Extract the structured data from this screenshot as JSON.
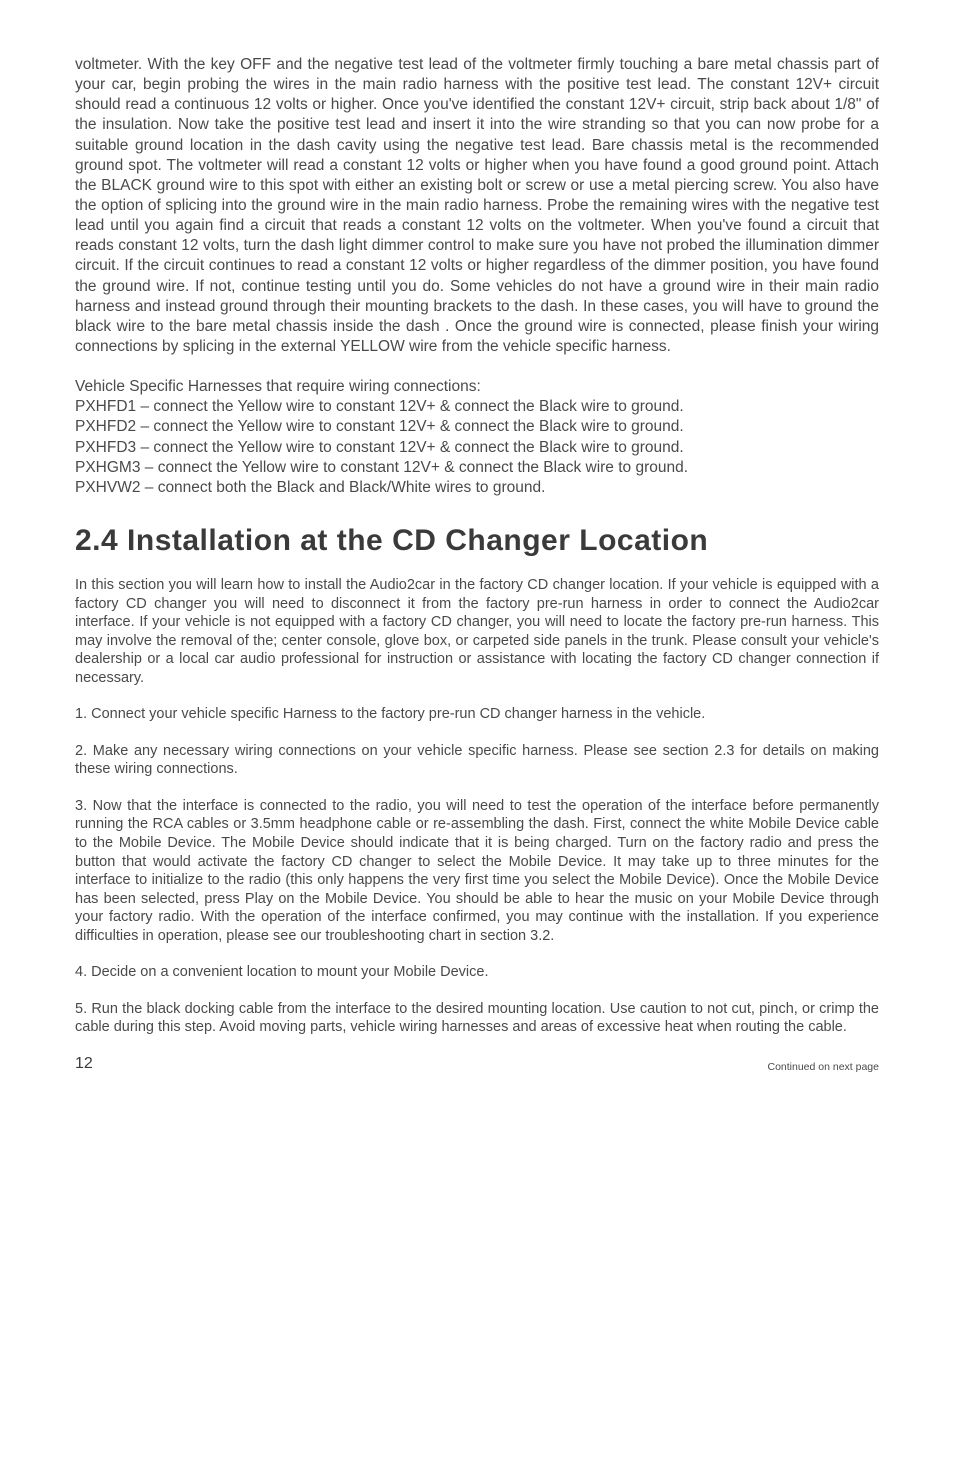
{
  "para1": "voltmeter.  With the key OFF and the negative test lead of the voltmeter firmly touching a bare metal chassis part of your car, begin probing the wires in the main radio harness with the positive test lead.  The constant 12V+ circuit should read a continuous 12 volts or higher.  Once you've identified the constant 12V+ circuit, strip back about 1/8\" of the insulation.  Now take the positive test lead and insert it into the wire stranding so that you can now probe for a suitable ground location in the dash cavity using the negative test lead.  Bare chassis metal is the recommended ground spot.  The voltmeter will read a constant 12 volts or higher when you have found a good ground point.  Attach the BLACK ground wire to this spot with either an existing bolt or screw or use a metal piercing screw.  You also have the option of splicing into the ground wire in the main radio harness.  Probe the remaining wires with the negative test lead until you again find a circuit that reads a constant 12 volts on the voltmeter.  When you've found a circuit that reads constant 12 volts, turn the dash light dimmer control to make sure you have not probed the illumination dimmer circuit.  If the circuit continues to read a constant 12 volts or higher regardless of the dimmer position, you have found the ground wire.  If not, continue testing until you do.  Some vehicles do not have a ground wire in their main radio harness and instead ground through their mounting brackets to the dash.  In these cases, you will have to ground the black wire to the bare metal chassis inside the dash . Once the ground wire is connected, please finish your wiring connections by splicing in the external YELLOW wire from the vehicle specific harness.",
  "harness": {
    "intro": "Vehicle Specific Harnesses that require wiring connections:",
    "lines": [
      "PXHFD1 – connect the Yellow wire to constant 12V+ & connect the Black wire to ground.",
      "PXHFD2 – connect the Yellow wire to constant 12V+ & connect the Black wire to ground.",
      "PXHFD3 – connect the Yellow wire to constant 12V+ & connect the Black wire to ground.",
      "PXHGM3 – connect the Yellow wire to constant 12V+ & connect the Black wire to ground.",
      "PXHVW2 – connect both the Black and Black/White wires to ground."
    ]
  },
  "heading": "2.4 Installation at the CD Changer Location",
  "s1": "In this section you will learn how to install the Audio2car in the factory CD changer location. If your vehicle is equipped with a factory CD changer you will need to disconnect it from the factory pre-run harness in order to connect the Audio2car interface. If your vehicle is not equipped with a factory CD changer, you will need to locate the factory pre-run harness. This may involve the removal of the; center console, glove box, or carpeted side panels in the trunk.  Please consult your vehicle's dealership or a local car audio professional for instruction or assistance with locating the factory CD changer connection if necessary.",
  "s2": "1. Connect your vehicle specific Harness to the factory pre-run CD changer harness in the vehicle.",
  "s3": "2. Make any necessary wiring connections on your vehicle specific harness.  Please see section 2.3 for details on making these wiring connections.",
  "s4": "3. Now that the interface is connected to the radio, you will need to test the operation of the interface before permanently running the RCA cables or 3.5mm headphone cable or re-assembling the dash. First, connect the white Mobile Device cable to the Mobile Device. The Mobile Device should indicate that it is being charged. Turn on the factory radio and press the button that would activate the factory CD changer to select the Mobile Device. It may take up to three minutes for the interface to initialize to the radio (this only happens the very first time you select the Mobile Device). Once the Mobile Device has been selected, press Play on the Mobile Device. You should be able to hear the music on your Mobile Device through your factory radio. With the operation of the interface confirmed, you may continue with the installation.  If you experience difficulties in operation, please see our troubleshooting chart in section 3.2.",
  "s5": "4. Decide on a convenient location to mount your Mobile Device.",
  "s6": "5. Run the black docking cable from the interface to the desired mounting location. Use caution to not cut, pinch, or crimp the cable during this step.  Avoid moving parts, vehicle wiring harnesses and areas of excessive heat when routing the cable.",
  "footer": {
    "page": "12",
    "continued": "Continued on next page"
  }
}
